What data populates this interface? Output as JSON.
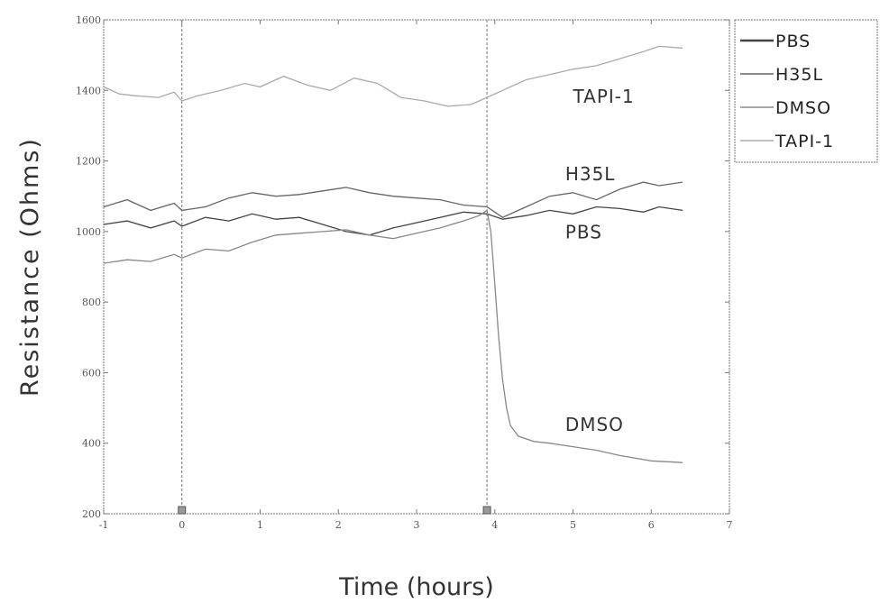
{
  "chart_data": {
    "type": "line",
    "xlabel": "Time (hours)",
    "ylabel": "Resistance (Ohms)",
    "xlim": [
      -1,
      7
    ],
    "ylim": [
      200,
      1600
    ],
    "xticks": [
      "-1",
      "0",
      "1",
      "2",
      "3",
      "4",
      "5",
      "6",
      "7"
    ],
    "yticks": [
      "200",
      "400",
      "600",
      "800",
      "1000",
      "1200",
      "1400",
      "1600"
    ],
    "grid": false,
    "legend_position": "outside-top-right",
    "vertical_markers": [
      0,
      3.9
    ],
    "series": [
      {
        "name": "PBS",
        "color": "#444444",
        "x": [
          -1,
          -0.7,
          -0.4,
          -0.1,
          0,
          0.3,
          0.6,
          0.9,
          1.2,
          1.5,
          1.8,
          2.1,
          2.4,
          2.7,
          3.0,
          3.3,
          3.6,
          3.9,
          4.1,
          4.4,
          4.7,
          5.0,
          5.3,
          5.6,
          5.9,
          6.1,
          6.4
        ],
        "y": [
          1020,
          1030,
          1010,
          1030,
          1015,
          1040,
          1030,
          1050,
          1035,
          1040,
          1020,
          1000,
          990,
          1010,
          1025,
          1040,
          1055,
          1050,
          1035,
          1045,
          1060,
          1050,
          1070,
          1065,
          1055,
          1070,
          1060
        ]
      },
      {
        "name": "H35L",
        "color": "#666666",
        "x": [
          -1,
          -0.7,
          -0.4,
          -0.1,
          0,
          0.3,
          0.6,
          0.9,
          1.2,
          1.5,
          1.8,
          2.1,
          2.4,
          2.7,
          3.0,
          3.3,
          3.6,
          3.9,
          4.1,
          4.4,
          4.7,
          5.0,
          5.3,
          5.6,
          5.9,
          6.1,
          6.4
        ],
        "y": [
          1070,
          1090,
          1060,
          1080,
          1060,
          1070,
          1095,
          1110,
          1100,
          1105,
          1115,
          1125,
          1110,
          1100,
          1095,
          1090,
          1075,
          1070,
          1040,
          1070,
          1100,
          1110,
          1090,
          1120,
          1140,
          1130,
          1140
        ]
      },
      {
        "name": "DMSO",
        "color": "#888888",
        "x": [
          -1,
          -0.7,
          -0.4,
          -0.1,
          0,
          0.3,
          0.6,
          0.9,
          1.2,
          1.5,
          1.8,
          2.1,
          2.4,
          2.7,
          3.0,
          3.3,
          3.6,
          3.8,
          3.9,
          3.95,
          4.0,
          4.05,
          4.1,
          4.15,
          4.2,
          4.3,
          4.5,
          4.7,
          5.0,
          5.3,
          5.6,
          6.0,
          6.4
        ],
        "y": [
          910,
          920,
          915,
          935,
          925,
          950,
          945,
          970,
          990,
          995,
          1000,
          1005,
          990,
          980,
          995,
          1010,
          1030,
          1045,
          1060,
          1000,
          850,
          700,
          580,
          500,
          450,
          420,
          405,
          400,
          390,
          380,
          365,
          350,
          345
        ]
      },
      {
        "name": "TAPI-1",
        "color": "#aaaaaa",
        "x": [
          -1,
          -0.8,
          -0.6,
          -0.3,
          -0.1,
          0,
          0.2,
          0.5,
          0.8,
          1.0,
          1.3,
          1.6,
          1.9,
          2.2,
          2.5,
          2.8,
          3.1,
          3.4,
          3.7,
          3.9,
          4.1,
          4.4,
          4.7,
          5.0,
          5.3,
          5.6,
          5.9,
          6.1,
          6.4
        ],
        "y": [
          1410,
          1390,
          1385,
          1380,
          1395,
          1370,
          1385,
          1400,
          1420,
          1410,
          1440,
          1415,
          1400,
          1435,
          1420,
          1380,
          1370,
          1355,
          1360,
          1380,
          1400,
          1430,
          1445,
          1460,
          1470,
          1490,
          1510,
          1525,
          1520
        ]
      }
    ],
    "annotations": [
      {
        "text": "TAPI-1",
        "x": 5.0,
        "y": 1365
      },
      {
        "text": "H35L",
        "x": 4.9,
        "y": 1145
      },
      {
        "text": "PBS",
        "x": 4.9,
        "y": 980
      },
      {
        "text": "DMSO",
        "x": 4.9,
        "y": 435
      }
    ]
  }
}
